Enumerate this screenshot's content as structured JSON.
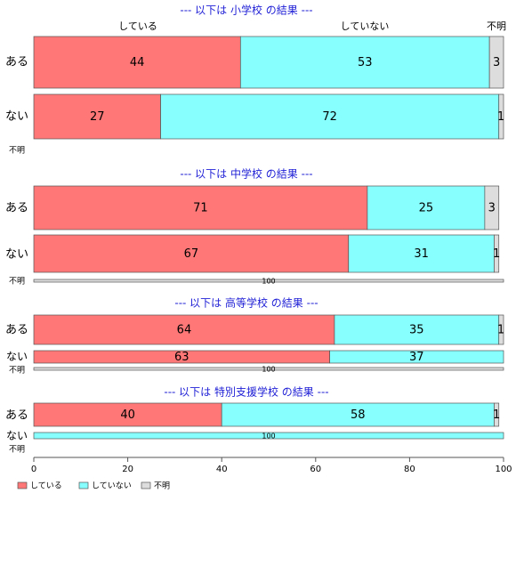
{
  "chart_data": {
    "type": "bar",
    "orientation": "horizontal",
    "stacked": true,
    "xlim": [
      0,
      100
    ],
    "xticks": [
      0,
      20,
      40,
      60,
      80,
      100
    ],
    "series_names": [
      "している",
      "していない",
      "不明"
    ],
    "colors": {
      "している": "#ff7777",
      "していない": "#88ffff",
      "不明": "#dddddd"
    },
    "column_headers": [
      "している",
      "していない",
      "不明"
    ],
    "legend": {
      "position": "bottom-left",
      "items": [
        "している",
        "していない",
        "不明"
      ]
    },
    "panels": [
      {
        "title": "--- 以下は 小学校 の結果 ---",
        "rows": [
          {
            "label": "ある",
            "values": [
              44,
              53,
              3
            ],
            "labels": [
              "44",
              "53",
              "3"
            ]
          },
          {
            "label": "ない",
            "values": [
              27,
              72,
              1
            ],
            "labels": [
              "27",
              "72",
              "1"
            ]
          },
          {
            "label": "不明",
            "values": [],
            "labels": []
          }
        ]
      },
      {
        "title": "--- 以下は 中学校 の結果 ---",
        "rows": [
          {
            "label": "ある",
            "values": [
              71,
              25,
              3
            ],
            "labels": [
              "71",
              "25",
              "3"
            ]
          },
          {
            "label": "ない",
            "values": [
              67,
              31,
              1
            ],
            "labels": [
              "67",
              "31",
              "1"
            ]
          },
          {
            "label": "不明",
            "values": [
              0,
              0,
              100
            ],
            "labels": [
              "",
              "",
              "100"
            ]
          }
        ]
      },
      {
        "title": "--- 以下は 高等学校 の結果 ---",
        "rows": [
          {
            "label": "ある",
            "values": [
              64,
              35,
              1
            ],
            "labels": [
              "64",
              "35",
              "1"
            ]
          },
          {
            "label": "ない",
            "values": [
              63,
              37,
              0
            ],
            "labels": [
              "63",
              "37",
              ""
            ]
          },
          {
            "label": "不明",
            "values": [
              0,
              0,
              100
            ],
            "labels": [
              "",
              "",
              "100"
            ]
          }
        ]
      },
      {
        "title": "--- 以下は 特別支援学校 の結果 ---",
        "rows": [
          {
            "label": "ある",
            "values": [
              40,
              58,
              1
            ],
            "labels": [
              "40",
              "58",
              "1"
            ]
          },
          {
            "label": "ない",
            "values": [
              0,
              100,
              0
            ],
            "labels": [
              "",
              "100",
              ""
            ]
          },
          {
            "label": "不明",
            "values": [],
            "labels": []
          }
        ]
      }
    ]
  }
}
